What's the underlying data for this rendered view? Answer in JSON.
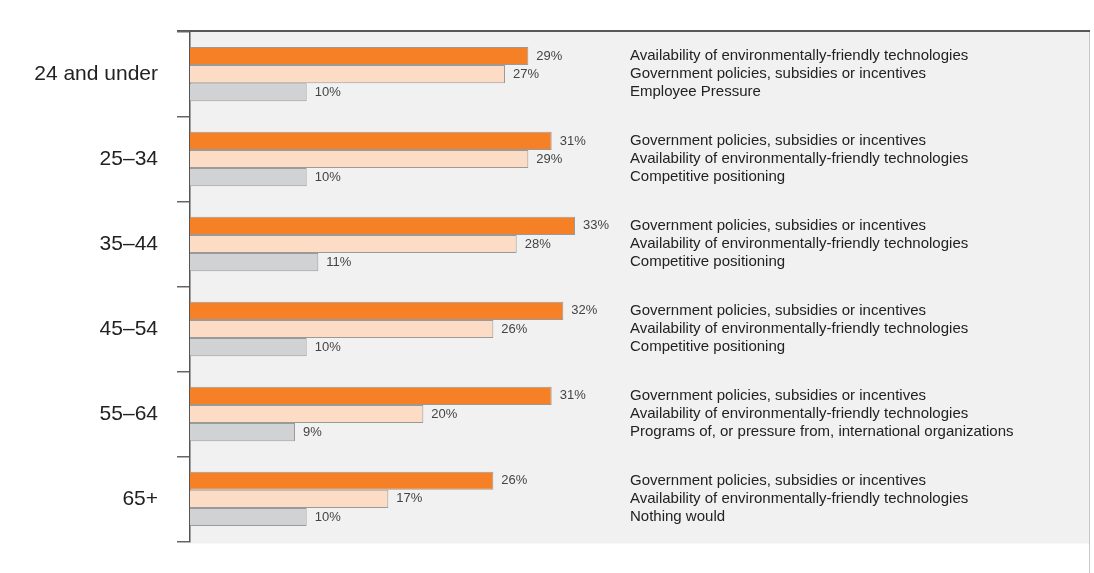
{
  "chart_data": {
    "type": "bar",
    "orientation": "horizontal",
    "categories": [
      "24 and under",
      "25–34",
      "35–44",
      "45–54",
      "55–64",
      "65+"
    ],
    "series": [
      {
        "color": "#f58025",
        "values": [
          29,
          31,
          33,
          32,
          31,
          26
        ],
        "value_labels": [
          "29%",
          "31%",
          "33%",
          "32%",
          "31%",
          "26%"
        ]
      },
      {
        "color": "#fcdcc4",
        "values": [
          27,
          29,
          28,
          26,
          20,
          17
        ],
        "value_labels": [
          "27%",
          "29%",
          "28%",
          "26%",
          "20%",
          "17%"
        ]
      },
      {
        "color": "#d1d2d4",
        "values": [
          10,
          10,
          11,
          10,
          9,
          10
        ],
        "value_labels": [
          "10%",
          "10%",
          "11%",
          "10%",
          "9%",
          "10%"
        ]
      }
    ],
    "annotations": [
      "Availability of environmentally-friendly technologies",
      "Government policies, subsidies or incentives",
      "Employee Pressure",
      "Government policies, subsidies or incentives",
      "Availability of environmentally-friendly technologies",
      "Competitive positioning",
      "Government policies, subsidies or incentives",
      "Availability of environmentally-friendly technologies",
      "Competitive positioning",
      "Government policies, subsidies or incentives",
      "Availability of environmentally-friendly technologies",
      "Competitive positioning",
      "Government policies, subsidies or incentives",
      "Availability of environmentally-friendly technologies",
      "Programs of, or pressure from, international organizations",
      "Government policies, subsidies or incentives",
      "Availability of environmentally-friendly technologies",
      "Nothing would"
    ],
    "grid": false,
    "legend": false
  }
}
